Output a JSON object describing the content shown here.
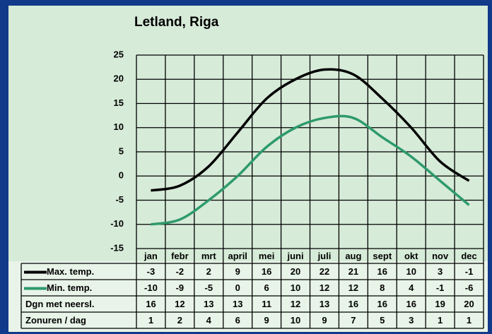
{
  "chart_data": {
    "type": "line",
    "title": "Letland, Riga",
    "categories": [
      "jan",
      "febr",
      "mrt",
      "april",
      "mei",
      "juni",
      "juli",
      "aug",
      "sept",
      "okt",
      "nov",
      "dec"
    ],
    "series": [
      {
        "name": "Max. temp.",
        "color": "#000000",
        "values": [
          -3,
          -2,
          2,
          9,
          16,
          20,
          22,
          21,
          16,
          10,
          3,
          -1
        ]
      },
      {
        "name": "Min. temp.",
        "color": "#2e9a6c",
        "values": [
          -10,
          -9,
          -5,
          0,
          6,
          10,
          12,
          12,
          8,
          4,
          -1,
          -6
        ]
      }
    ],
    "ylim": [
      -15,
      25
    ],
    "yticks": [
      -15,
      -10,
      -5,
      0,
      5,
      10,
      15,
      20,
      25
    ],
    "grid": true
  },
  "table": {
    "rows": [
      {
        "label": "Dgn met neersl.",
        "values": [
          16,
          12,
          13,
          13,
          11,
          12,
          13,
          16,
          16,
          16,
          19,
          20
        ]
      },
      {
        "label": "Zonuren / dag",
        "values": [
          1,
          2,
          4,
          6,
          9,
          10,
          9,
          7,
          5,
          3,
          1,
          1
        ]
      }
    ]
  }
}
